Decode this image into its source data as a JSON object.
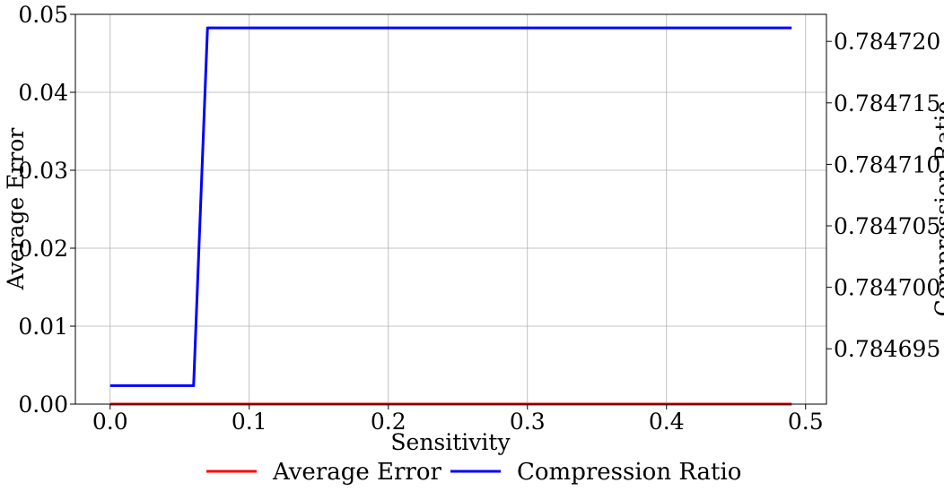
{
  "chart_data": {
    "type": "line",
    "xlabel": "Sensitivity",
    "ylabel": "Average Error",
    "y2label": "Compression Ratio",
    "xlim": [
      -0.025,
      0.515
    ],
    "ylim": [
      0,
      0.05
    ],
    "y2lim": [
      0.7846905,
      0.7847222
    ],
    "xticks": [
      "0.0",
      "0.1",
      "0.2",
      "0.3",
      "0.4",
      "0.5"
    ],
    "yticks": [
      "0.00",
      "0.01",
      "0.02",
      "0.03",
      "0.04",
      "0.05"
    ],
    "y2ticks": [
      "0.784695",
      "0.784700",
      "0.784705",
      "0.784710",
      "0.784715",
      "0.784720"
    ],
    "grid": true,
    "legend_position": "bottom-center",
    "series": [
      {
        "name": "Average Error",
        "axis": "left",
        "color": "#ff0000",
        "x": [
          0.0,
          0.49
        ],
        "y": [
          0.0,
          0.0
        ]
      },
      {
        "name": "Compression Ratio",
        "axis": "right",
        "color": "#0000ff",
        "x": [
          0.0,
          0.06,
          0.07,
          0.49
        ],
        "y": [
          0.784692,
          0.784692,
          0.7847211,
          0.7847211
        ]
      }
    ]
  }
}
